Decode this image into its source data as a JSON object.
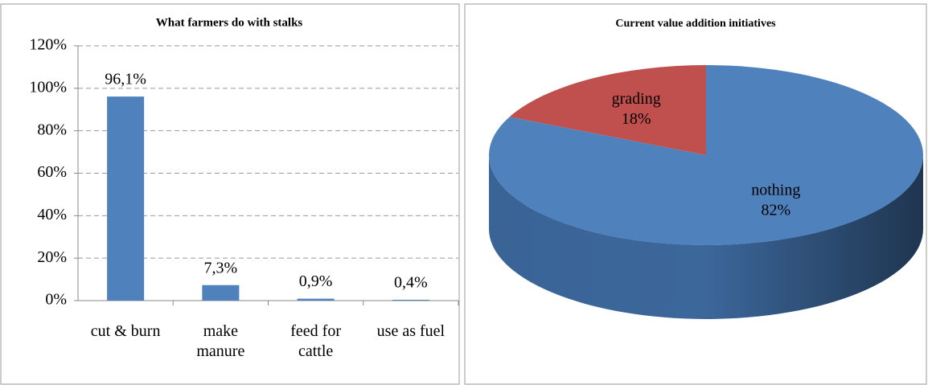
{
  "chart_data": [
    {
      "type": "bar",
      "title": "What farmers do with stalks",
      "categories": [
        "cut & burn",
        "make\nmanure",
        "feed for\ncattle",
        "use as fuel"
      ],
      "values": [
        96.1,
        7.3,
        0.9,
        0.4
      ],
      "value_labels": [
        "96,1%",
        "7,3%",
        "0,9%",
        "0,4%"
      ],
      "color": "#4f81bd",
      "ylim": [
        0,
        120
      ],
      "yticks": [
        {
          "value": 0,
          "label": "0%"
        },
        {
          "value": 20,
          "label": "20%"
        },
        {
          "value": 40,
          "label": "40%"
        },
        {
          "value": 60,
          "label": "60%"
        },
        {
          "value": 80,
          "label": "80%"
        },
        {
          "value": 100,
          "label": "100%"
        },
        {
          "value": 120,
          "label": "120%"
        }
      ],
      "grid": true
    },
    {
      "type": "pie",
      "title": "Current value addition initiatives",
      "categories": [
        "nothing",
        "grading"
      ],
      "values": [
        82,
        18
      ],
      "value_labels": [
        "82%",
        "18%"
      ],
      "colors": [
        "#4f81bd",
        "#c0504d"
      ]
    }
  ]
}
